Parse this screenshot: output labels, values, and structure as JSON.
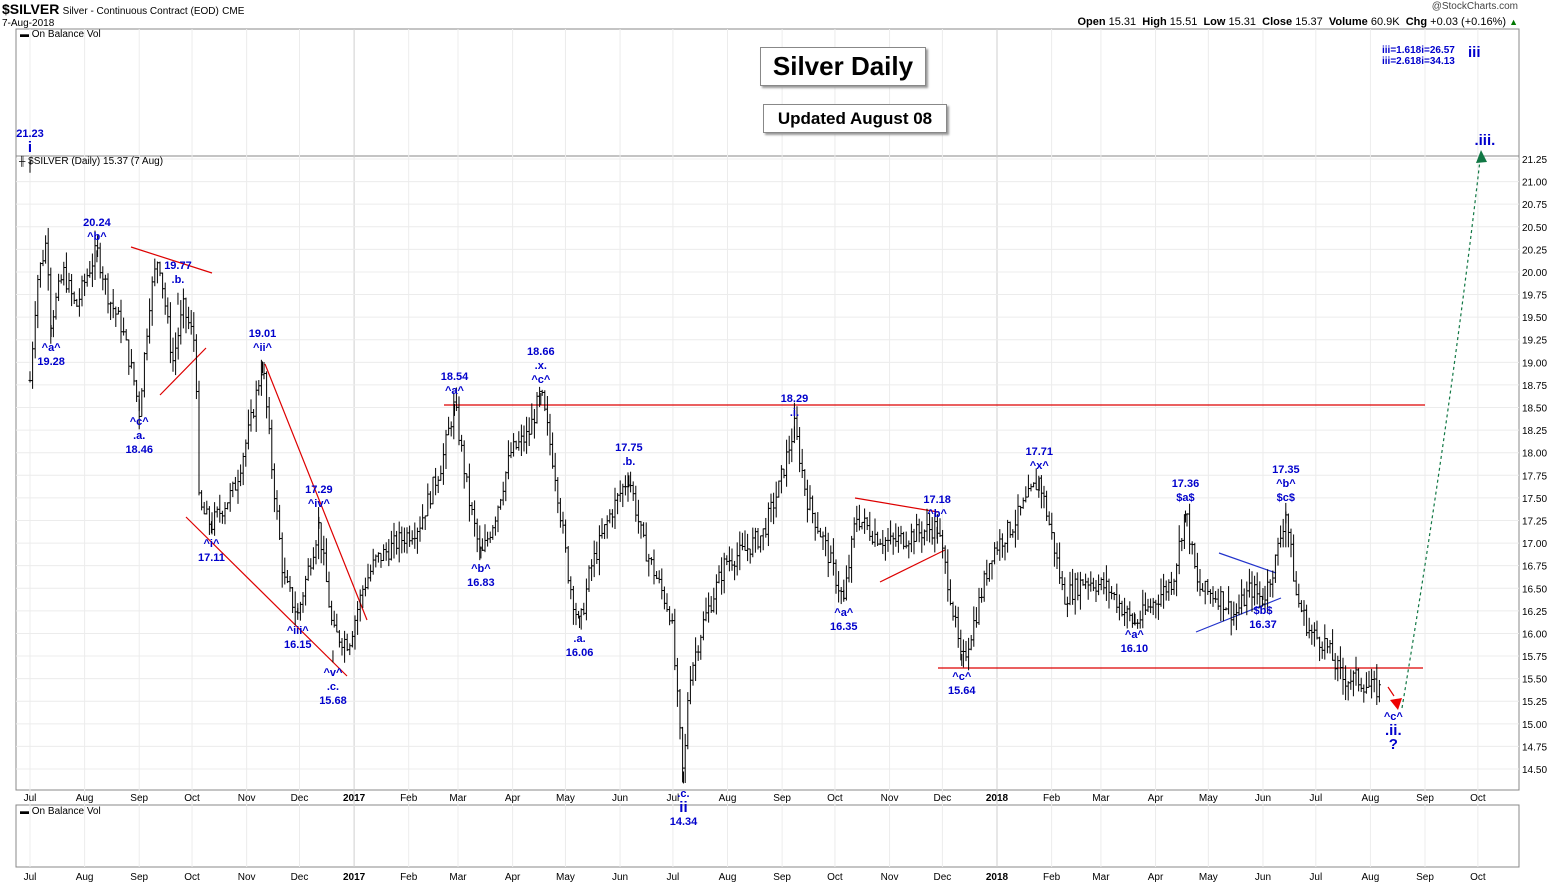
{
  "header": {
    "symbol": "$SILVER",
    "description": "Silver - Continuous Contract (EOD)",
    "exchange": "CME",
    "date": "7-Aug-2018",
    "copyright": "@StockCharts.com",
    "open_label": "Open",
    "open": "15.31",
    "high_label": "High",
    "high": "15.51",
    "low_label": "Low",
    "low": "15.31",
    "close_label": "Close",
    "close": "15.37",
    "volume_label": "Volume",
    "volume": "60.9K",
    "chg_label": "Chg",
    "chg": "+0.03 (+0.16%)",
    "up_arrow": "▲"
  },
  "indicator_top": "On Balance Vol",
  "indicator_bottom": "On Balance Vol",
  "price_legend": "$SILVER (Daily) 15.37 (7 Aug)",
  "title_box": "Silver Daily",
  "updated_box": "Updated August 08",
  "targets": {
    "line1": "iii=1.618i=26.57",
    "line2": "iii=2.618i=34.13",
    "tag": "iii"
  },
  "colors": {
    "wave_labels": "#0000cc",
    "trendline": "#dd0000",
    "projection": "#007744",
    "price_bars": "#000000"
  },
  "chart_data": {
    "type": "ohlc",
    "title": "$SILVER (Daily) 15.37 (7 Aug)",
    "y_scale": "linear",
    "ylim": [
      14.3,
      21.4
    ],
    "y_ticks": [
      "14.50",
      "14.75",
      "15.00",
      "15.25",
      "15.50",
      "15.75",
      "16.00",
      "16.25",
      "16.50",
      "16.75",
      "17.00",
      "17.25",
      "17.50",
      "17.75",
      "18.00",
      "18.25",
      "18.50",
      "18.75",
      "19.00",
      "19.25",
      "19.50",
      "19.75",
      "20.00",
      "20.25",
      "20.50",
      "20.75",
      "21.00",
      "21.25"
    ],
    "x_ticks": [
      "Jul",
      "Aug",
      "Sep",
      "Oct",
      "Nov",
      "Dec",
      "2017",
      "Feb",
      "Mar",
      "Apr",
      "May",
      "Jun",
      "Jul",
      "Aug",
      "Sep",
      "Oct",
      "Nov",
      "Dec",
      "2018",
      "Feb",
      "Mar",
      "Apr",
      "May",
      "Jun",
      "Jul",
      "Aug",
      "Sep",
      "Oct"
    ],
    "series": [
      {
        "values": [
          [
            "2016-07-01",
            18.8
          ],
          [
            "2016-07-05",
            19.9
          ],
          [
            "2016-07-11",
            20.4
          ],
          [
            "2016-07-12",
            19.4
          ],
          [
            "2016-07-20",
            20.0
          ],
          [
            "2016-07-27",
            19.6
          ],
          [
            "2016-08-03",
            20.0
          ],
          [
            "2016-08-08",
            20.24
          ],
          [
            "2016-08-15",
            19.7
          ],
          [
            "2016-08-22",
            19.4
          ],
          [
            "2016-08-29",
            18.8
          ],
          [
            "2016-09-01",
            18.46
          ],
          [
            "2016-09-07",
            19.7
          ],
          [
            "2016-09-12",
            20.2
          ],
          [
            "2016-09-20",
            19.0
          ],
          [
            "2016-09-26",
            19.6
          ],
          [
            "2016-10-03",
            19.2
          ],
          [
            "2016-10-05",
            17.4
          ],
          [
            "2016-10-12",
            17.2
          ],
          [
            "2016-10-25",
            17.6
          ],
          [
            "2016-11-03",
            18.3
          ],
          [
            "2016-11-10",
            19.0
          ],
          [
            "2016-11-15",
            17.9
          ],
          [
            "2016-11-22",
            16.6
          ],
          [
            "2016-11-30",
            16.2
          ],
          [
            "2016-12-07",
            16.8
          ],
          [
            "2016-12-12",
            17.2
          ],
          [
            "2016-12-20",
            16.0
          ],
          [
            "2016-12-29",
            15.9
          ],
          [
            "2017-01-06",
            16.5
          ],
          [
            "2017-01-13",
            16.8
          ],
          [
            "2017-01-25",
            17.0
          ],
          [
            "2017-02-07",
            17.2
          ],
          [
            "2017-02-20",
            17.9
          ],
          [
            "2017-02-27",
            18.54
          ],
          [
            "2017-03-07",
            17.5
          ],
          [
            "2017-03-14",
            16.83
          ],
          [
            "2017-03-22",
            17.3
          ],
          [
            "2017-03-31",
            18.0
          ],
          [
            "2017-04-10",
            18.2
          ],
          [
            "2017-04-17",
            18.66
          ],
          [
            "2017-04-25",
            17.8
          ],
          [
            "2017-05-03",
            16.6
          ],
          [
            "2017-05-09",
            16.06
          ],
          [
            "2017-05-15",
            16.7
          ],
          [
            "2017-05-26",
            17.3
          ],
          [
            "2017-06-06",
            17.75
          ],
          [
            "2017-06-14",
            17.0
          ],
          [
            "2017-06-22",
            16.6
          ],
          [
            "2017-06-30",
            16.2
          ],
          [
            "2017-07-07",
            14.34
          ],
          [
            "2017-07-10",
            15.5
          ],
          [
            "2017-07-18",
            16.1
          ],
          [
            "2017-07-31",
            16.8
          ],
          [
            "2017-08-10",
            16.9
          ],
          [
            "2017-08-21",
            17.1
          ],
          [
            "2017-08-30",
            17.6
          ],
          [
            "2017-09-08",
            18.29
          ],
          [
            "2017-09-15",
            17.5
          ],
          [
            "2017-09-25",
            17.0
          ],
          [
            "2017-10-06",
            16.35
          ],
          [
            "2017-10-13",
            17.3
          ],
          [
            "2017-10-23",
            17.1
          ],
          [
            "2017-11-01",
            17.0
          ],
          [
            "2017-11-15",
            17.1
          ],
          [
            "2017-11-28",
            17.18
          ],
          [
            "2017-12-05",
            16.5
          ],
          [
            "2017-12-12",
            15.64
          ],
          [
            "2017-12-20",
            16.2
          ],
          [
            "2017-12-29",
            16.9
          ],
          [
            "2018-01-10",
            17.2
          ],
          [
            "2018-01-25",
            17.71
          ],
          [
            "2018-02-02",
            17.0
          ],
          [
            "2018-02-08",
            16.4
          ],
          [
            "2018-02-20",
            16.6
          ],
          [
            "2018-03-05",
            16.5
          ],
          [
            "2018-03-20",
            16.1
          ],
          [
            "2018-03-29",
            16.3
          ],
          [
            "2018-04-11",
            16.6
          ],
          [
            "2018-04-18",
            17.36
          ],
          [
            "2018-04-25",
            16.5
          ],
          [
            "2018-05-08",
            16.4
          ],
          [
            "2018-05-16",
            16.2
          ],
          [
            "2018-05-25",
            16.5
          ],
          [
            "2018-06-01",
            16.37
          ],
          [
            "2018-06-08",
            16.8
          ],
          [
            "2018-06-14",
            17.35
          ],
          [
            "2018-06-20",
            16.4
          ],
          [
            "2018-06-28",
            16.0
          ],
          [
            "2018-07-06",
            15.9
          ],
          [
            "2018-07-16",
            15.5
          ],
          [
            "2018-07-24",
            15.5
          ],
          [
            "2018-08-01",
            15.4
          ],
          [
            "2018-08-07",
            15.37
          ]
        ]
      }
    ],
    "annotations": [
      {
        "date": "2016-07-01",
        "price": 21.23,
        "texts": [
          "21.23",
          "i"
        ]
      },
      {
        "date": "2016-07-13",
        "price": 19.28,
        "texts": [
          "^a^",
          "19.28"
        ]
      },
      {
        "date": "2016-08-08",
        "price": 20.24,
        "texts": [
          "20.24",
          "^b^"
        ]
      },
      {
        "date": "2016-09-01",
        "price": 18.46,
        "texts": [
          "^c^",
          ".a.",
          "18.46"
        ]
      },
      {
        "date": "2016-09-23",
        "price": 19.77,
        "texts": [
          "19.77",
          ".b."
        ]
      },
      {
        "date": "2016-10-12",
        "price": 17.11,
        "texts": [
          "^i^",
          "17.11"
        ]
      },
      {
        "date": "2016-11-10",
        "price": 19.01,
        "texts": [
          "19.01",
          "^ii^"
        ]
      },
      {
        "date": "2016-11-30",
        "price": 16.15,
        "texts": [
          "^iii^",
          "16.15"
        ]
      },
      {
        "date": "2016-12-12",
        "price": 17.29,
        "texts": [
          "17.29",
          "^iv^"
        ]
      },
      {
        "date": "2016-12-20",
        "price": 15.68,
        "texts": [
          "^v^",
          ".c.",
          "15.68"
        ]
      },
      {
        "date": "2017-02-27",
        "price": 18.54,
        "texts": [
          "18.54",
          "^a^"
        ]
      },
      {
        "date": "2017-03-14",
        "price": 16.83,
        "texts": [
          "^b^",
          "16.83"
        ]
      },
      {
        "date": "2017-04-17",
        "price": 18.66,
        "texts": [
          "18.66",
          ".x.",
          "^c^"
        ]
      },
      {
        "date": "2017-05-09",
        "price": 16.06,
        "texts": [
          ".a.",
          "16.06"
        ]
      },
      {
        "date": "2017-06-06",
        "price": 17.75,
        "texts": [
          "17.75",
          ".b."
        ]
      },
      {
        "date": "2017-07-07",
        "price": 14.34,
        "texts": [
          ".c.",
          "ii",
          "14.34"
        ]
      },
      {
        "date": "2017-09-08",
        "price": 18.29,
        "texts": [
          "18.29",
          ".i."
        ]
      },
      {
        "date": "2017-10-06",
        "price": 16.35,
        "texts": [
          "^a^",
          "16.35"
        ]
      },
      {
        "date": "2017-11-28",
        "price": 17.18,
        "texts": [
          "17.18",
          "^b^"
        ]
      },
      {
        "date": "2017-12-12",
        "price": 15.64,
        "texts": [
          "^c^",
          "15.64"
        ]
      },
      {
        "date": "2018-01-25",
        "price": 17.71,
        "texts": [
          "17.71",
          "^x^"
        ]
      },
      {
        "date": "2018-03-20",
        "price": 16.1,
        "texts": [
          "^a^",
          "16.10"
        ]
      },
      {
        "date": "2018-04-18",
        "price": 17.36,
        "texts": [
          "17.36",
          "$a$"
        ]
      },
      {
        "date": "2018-06-01",
        "price": 16.37,
        "texts": [
          "$b$",
          "16.37"
        ]
      },
      {
        "date": "2018-06-14",
        "price": 17.35,
        "texts": [
          "17.35",
          "^b^",
          "$c$"
        ]
      },
      {
        "date": "2018-08-14",
        "price": 15.2,
        "texts": [
          "^c^",
          ".ii.",
          "?"
        ]
      },
      {
        "date": "2018-10-05",
        "price": 21.3,
        "texts": [
          ".iii."
        ]
      }
    ],
    "horizontal_lines": [
      18.54,
      15.64
    ],
    "grid": true
  }
}
